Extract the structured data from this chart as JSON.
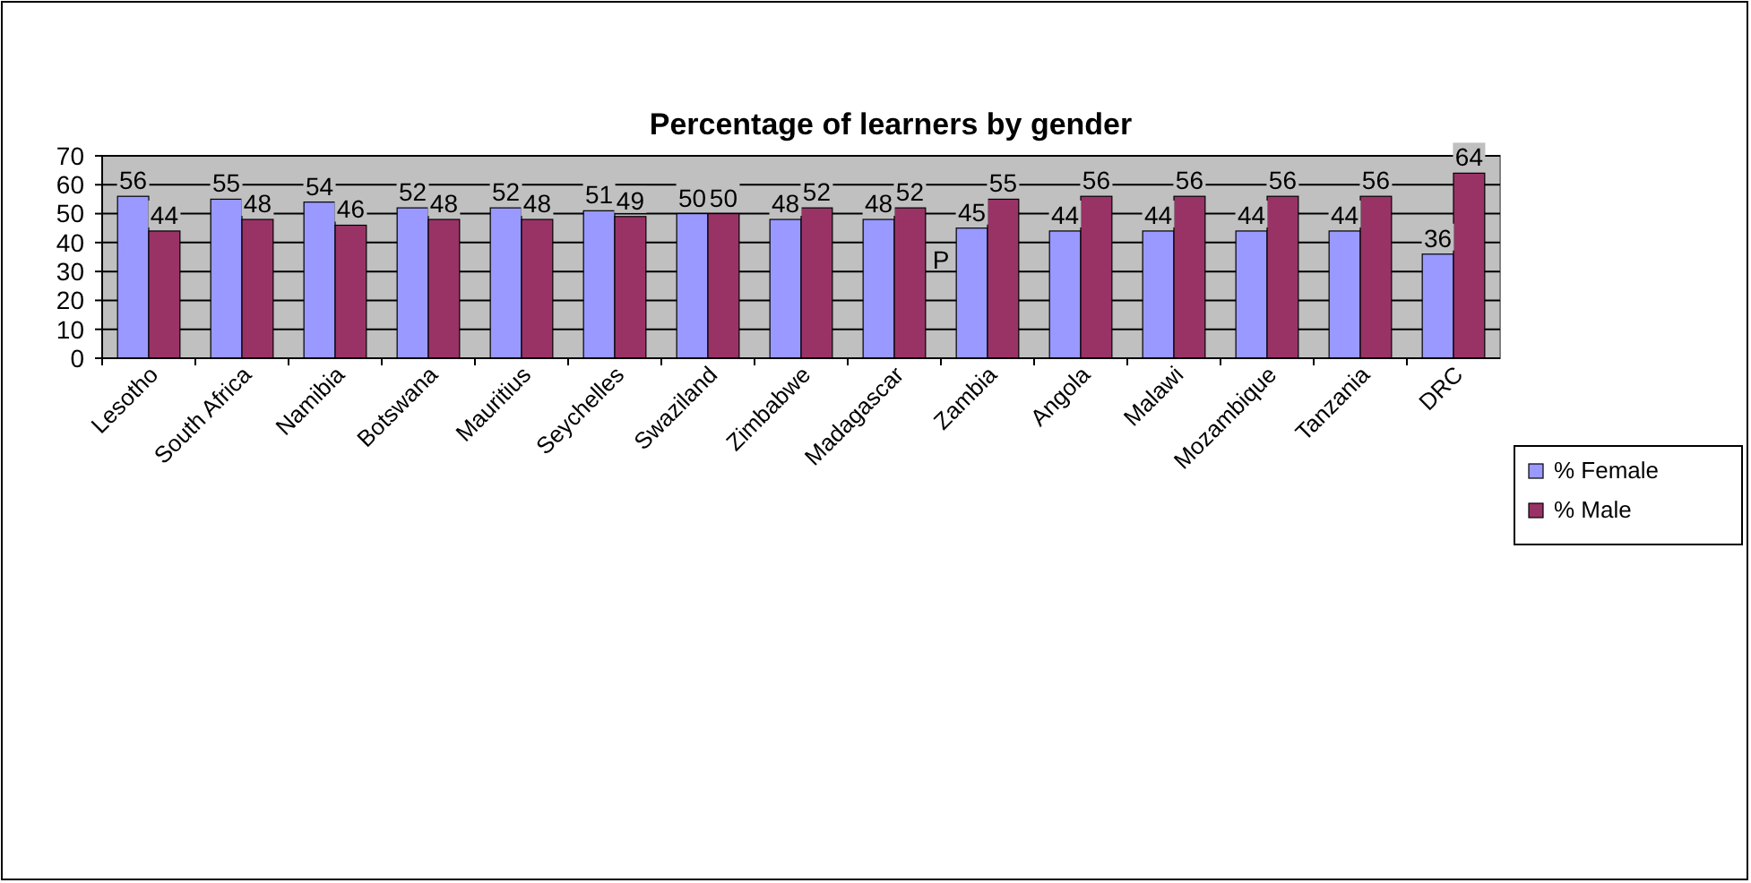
{
  "chart_data": {
    "type": "bar",
    "title": "Percentage of learners by gender",
    "categories": [
      "Lesotho",
      "South Africa",
      "Namibia",
      "Botswana",
      "Mauritius",
      "Seychelles",
      "Swaziland",
      "Zimbabwe",
      "Madagascar",
      "Zambia",
      "Angola",
      "Malawi",
      "Mozambique",
      "Tanzania",
      "DRC"
    ],
    "series": [
      {
        "name": "% Female",
        "color": "#9999ff",
        "values": [
          56,
          55,
          54,
          52,
          52,
          51,
          50,
          48,
          48,
          45,
          44,
          44,
          44,
          44,
          36
        ]
      },
      {
        "name": "% Male",
        "color": "#993366",
        "values": [
          44,
          48,
          46,
          48,
          48,
          49,
          50,
          52,
          52,
          55,
          56,
          56,
          56,
          56,
          64
        ]
      }
    ],
    "ylim": [
      0,
      70
    ],
    "yticks": [
      0,
      10,
      20,
      30,
      40,
      50,
      60,
      70
    ],
    "grid": "y",
    "legend": "right",
    "data_labels": true,
    "annotations": [
      "P"
    ]
  }
}
